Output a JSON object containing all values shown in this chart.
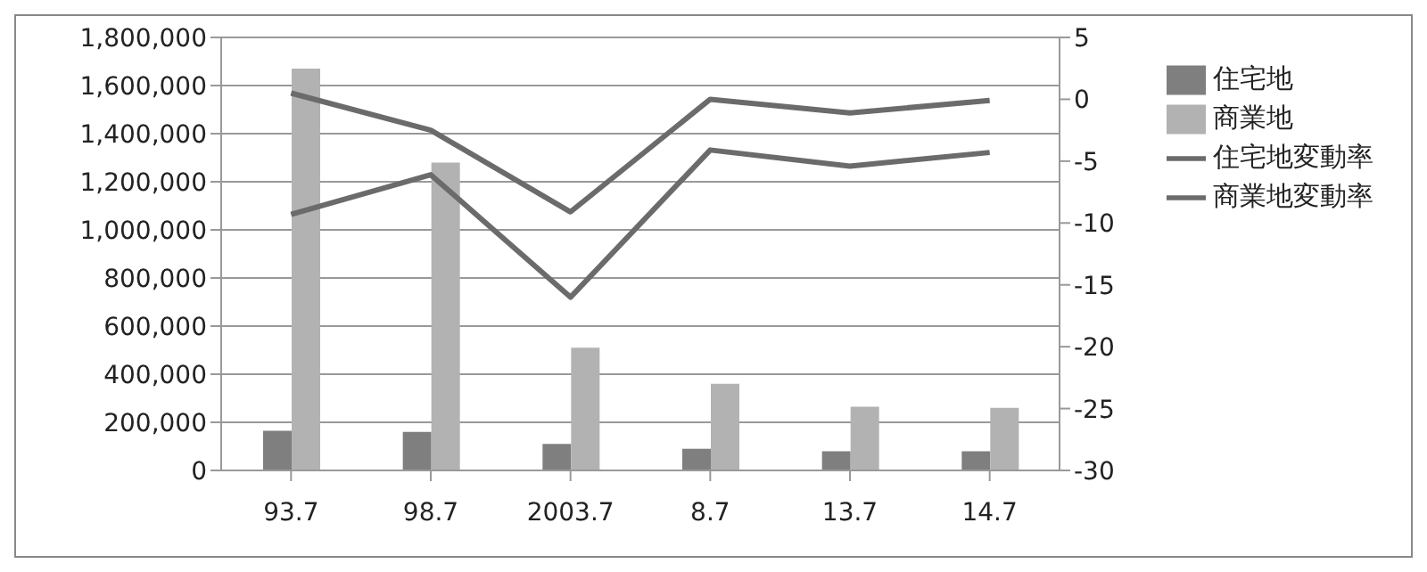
{
  "chart_data": {
    "type": "bar",
    "categories": [
      "93.7",
      "98.7",
      "2003.7",
      "8.7",
      "13.7",
      "14.7"
    ],
    "series": [
      {
        "name": "住宅地",
        "color": "#7f7f7f",
        "values": [
          165000,
          160000,
          110000,
          90000,
          80000,
          80000
        ]
      },
      {
        "name": "商業地",
        "color": "#b2b2b2",
        "values": [
          1670000,
          1280000,
          510000,
          360000,
          265000,
          260000
        ]
      },
      {
        "name": "住宅地変動率",
        "type": "line",
        "axis": "y2",
        "color": "#6b6b6b",
        "values": [
          0.5,
          -2.5,
          -9.1,
          0,
          -1.1,
          -0.1
        ]
      },
      {
        "name": "商業地変動率",
        "type": "line",
        "axis": "y2",
        "color": "#6b6b6b",
        "values": [
          -9.3,
          -6.1,
          -16,
          -4.1,
          -5.4,
          -4.3
        ]
      }
    ],
    "ylim": [
      0,
      1800000
    ],
    "yticks": [
      {
        "value": 0,
        "label": "0"
      },
      {
        "value": 200000,
        "label": "200,000"
      },
      {
        "value": 400000,
        "label": "400,000"
      },
      {
        "value": 600000,
        "label": "600,000"
      },
      {
        "value": 800000,
        "label": "800,000"
      },
      {
        "value": 1000000,
        "label": "1,000,000"
      },
      {
        "value": 1200000,
        "label": "1,200,000"
      },
      {
        "value": 1400000,
        "label": "1,400,000"
      },
      {
        "value": 1600000,
        "label": "1,600,000"
      },
      {
        "value": 1800000,
        "label": "1,800,000"
      }
    ],
    "y2lim": [
      -30,
      5
    ],
    "y2ticks": [
      5,
      0,
      -5,
      -10,
      -15,
      -20,
      -25,
      -30
    ],
    "grid": "y",
    "legend": "right",
    "marker": "none"
  }
}
